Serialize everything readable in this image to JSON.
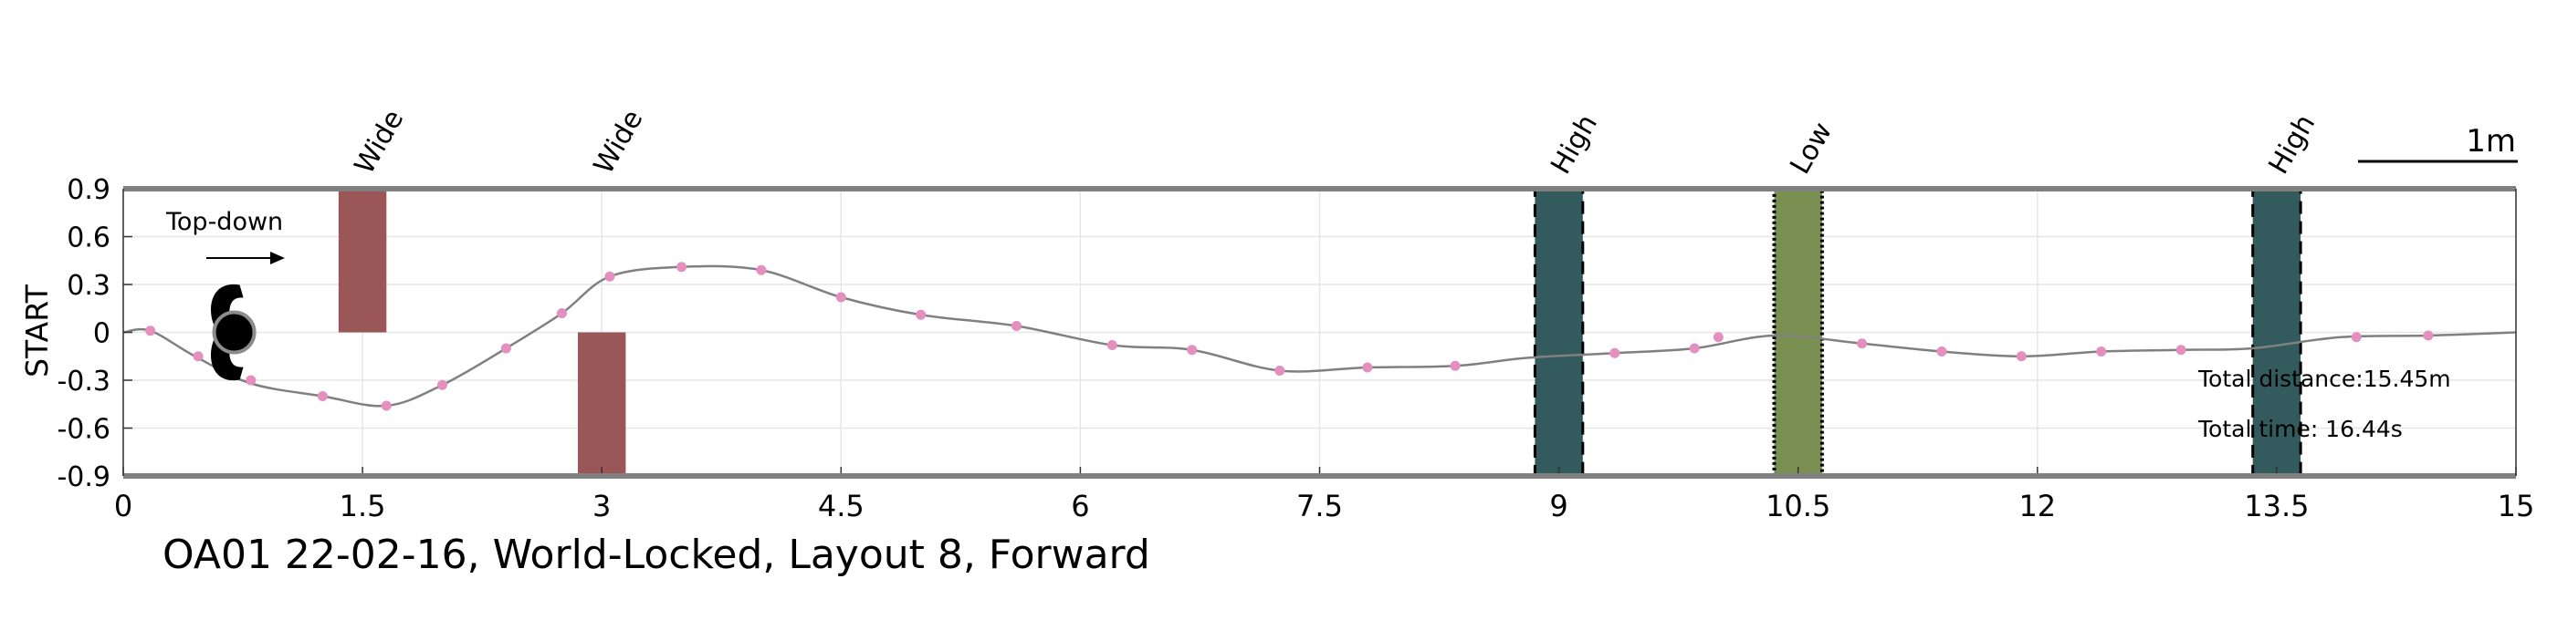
{
  "chart_data": {
    "type": "line",
    "caption": "OA01 22-02-16, World-Locked, Layout 8, Forward",
    "ylabel": "START",
    "xlim": [
      0,
      15
    ],
    "ylim": [
      -0.9,
      0.9
    ],
    "xticks": [
      "0",
      "1.5",
      "3",
      "4.5",
      "6",
      "7.5",
      "9",
      "10.5",
      "12",
      "13.5",
      "15"
    ],
    "yticks": [
      "0.9",
      "0.6",
      "0.3",
      "0",
      "-0.3",
      "-0.6",
      "-0.9"
    ],
    "grid": true,
    "inset_label": "Top-down",
    "scale_bar_label": "1m",
    "stats": {
      "distance": "Total distance:15.45m",
      "time": "Total time: 16.44s"
    },
    "colors": {
      "path": "#808080",
      "markers": "#e58fbf",
      "wide": "#9b5757",
      "high": "#335a5c",
      "low": "#7a8f52"
    },
    "obstacles": [
      {
        "label": "Wide",
        "kind": "wide",
        "x0": 1.35,
        "x1": 1.65,
        "y0": 0.0,
        "y1": 0.9
      },
      {
        "label": "Wide",
        "kind": "wide",
        "x0": 2.85,
        "x1": 3.15,
        "y0": -0.9,
        "y1": 0.0
      },
      {
        "label": "High",
        "kind": "high",
        "x0": 8.85,
        "x1": 9.15,
        "y0": -0.9,
        "y1": 0.9
      },
      {
        "label": "Low",
        "kind": "low",
        "x0": 10.35,
        "x1": 10.65,
        "y0": -0.9,
        "y1": 0.9
      },
      {
        "label": "High",
        "kind": "high",
        "x0": 13.35,
        "x1": 13.65,
        "y0": -0.9,
        "y1": 0.9
      }
    ],
    "series": [
      {
        "x": [
          0,
          0.17,
          0.45,
          0.8,
          1.25,
          1.65,
          2.0,
          2.4,
          2.75,
          3.05,
          3.5,
          4.0,
          4.5,
          5.0,
          5.6,
          6.2,
          6.7,
          7.25,
          7.8,
          8.35,
          8.8,
          9.35,
          9.85,
          10.35,
          10.9,
          11.4,
          11.9,
          12.4,
          12.9,
          13.35,
          13.9,
          14.45,
          15
        ],
        "y": [
          0.0,
          0.01,
          -0.15,
          -0.32,
          -0.4,
          -0.46,
          -0.33,
          -0.1,
          0.12,
          0.35,
          0.41,
          0.39,
          0.22,
          0.11,
          0.04,
          -0.08,
          -0.11,
          -0.24,
          -0.22,
          -0.21,
          -0.16,
          -0.13,
          -0.1,
          -0.02,
          -0.07,
          -0.12,
          -0.15,
          -0.12,
          -0.11,
          -0.1,
          -0.03,
          -0.02,
          0.0
        ]
      }
    ],
    "markers": {
      "x": [
        0.17,
        0.47,
        0.8,
        1.25,
        1.65,
        2.0,
        2.4,
        2.75,
        3.05,
        3.5,
        4.0,
        4.5,
        5.0,
        5.6,
        6.2,
        6.7,
        7.25,
        7.8,
        8.35,
        9.35,
        9.85,
        10.0,
        10.9,
        11.4,
        11.9,
        12.4,
        12.9,
        14.0,
        14.45
      ],
      "y": [
        0.01,
        -0.15,
        -0.3,
        -0.4,
        -0.46,
        -0.33,
        -0.1,
        0.12,
        0.35,
        0.41,
        0.39,
        0.22,
        0.11,
        0.04,
        -0.08,
        -0.11,
        -0.24,
        -0.22,
        -0.21,
        -0.13,
        -0.1,
        -0.03,
        -0.07,
        -0.12,
        -0.15,
        -0.12,
        -0.11,
        -0.03,
        -0.02
      ]
    },
    "start_marker": {
      "x": 0.65,
      "y": 0.0
    }
  }
}
